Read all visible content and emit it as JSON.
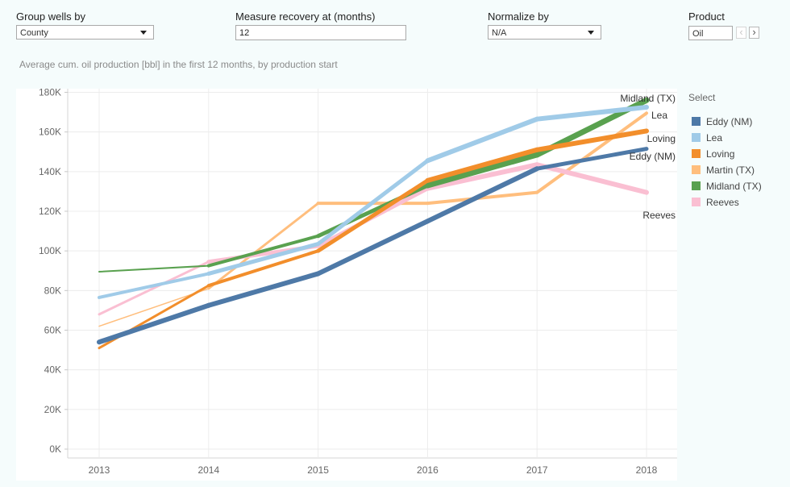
{
  "controls": {
    "group_by": {
      "label": "Group wells by",
      "value": "County"
    },
    "measure": {
      "label": "Measure recovery at (months)",
      "value": "12"
    },
    "normalize": {
      "label": "Normalize by",
      "value": "N/A"
    },
    "product": {
      "label": "Product",
      "value": "Oil"
    }
  },
  "legend": {
    "title": "Select"
  },
  "chart_data": {
    "type": "line",
    "title": "Average cum. oil production [bbl] in the first 12 months, by production start",
    "x": [
      2013,
      2014,
      2015,
      2016,
      2017,
      2018
    ],
    "x_tick_labels": [
      "2013",
      "2014",
      "2015",
      "2016",
      "2017",
      "2018"
    ],
    "y_tick_labels": [
      "0K",
      "20K",
      "40K",
      "60K",
      "80K",
      "100K",
      "120K",
      "140K",
      "160K",
      "180K"
    ],
    "ylim": [
      0,
      185000
    ],
    "grid": true,
    "legend_placement": "right",
    "series": [
      {
        "name": "Eddy (NM)",
        "color": "#4e79a7",
        "values": [
          54000,
          72500,
          88500,
          115000,
          141500,
          151500
        ],
        "end_label": "Eddy (NM)"
      },
      {
        "name": "Lea",
        "color": "#a0cbe8",
        "values": [
          76500,
          88500,
          103500,
          145500,
          166500,
          172500
        ],
        "end_label": "Lea"
      },
      {
        "name": "Loving",
        "color": "#f28e2b",
        "values": [
          51000,
          82500,
          100000,
          135500,
          151000,
          160500
        ],
        "end_label": "Loving"
      },
      {
        "name": "Martin (TX)",
        "color": "#ffbe7d",
        "values": [
          62000,
          81000,
          124000,
          124000,
          129500,
          169500
        ],
        "end_label": ""
      },
      {
        "name": "Midland (TX)",
        "color": "#59a14f",
        "values": [
          89500,
          92500,
          107500,
          133000,
          148500,
          176000
        ],
        "end_label": "Midland (TX)"
      },
      {
        "name": "Reeves",
        "color": "#fabfd2",
        "values": [
          68000,
          94500,
          102500,
          131500,
          143500,
          129500
        ],
        "end_label": "Reeves"
      }
    ]
  }
}
